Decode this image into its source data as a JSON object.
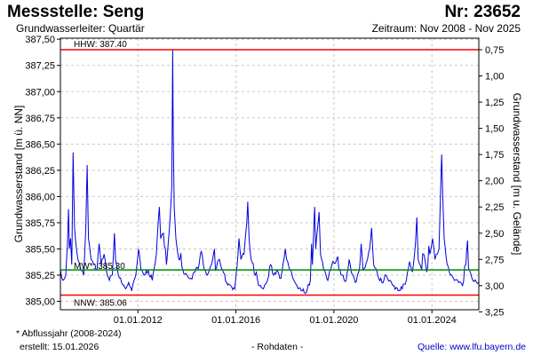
{
  "header": {
    "title": "Messstelle: Seng",
    "number": "Nr: 23652",
    "aquifer": "Grundwasserleiter: Quartär",
    "period": "Zeitraum: Nov 2008 - Nov 2025"
  },
  "footer": {
    "note": "* Abflussjahr (2008-2024)",
    "created": "erstellt:  15.01.2026",
    "raw": "- Rohdaten -",
    "source": "Quelle: www.lfu.bayern.de"
  },
  "colors": {
    "series": "#0000dd",
    "hhw": "#ff0000",
    "nnw": "#ff0000",
    "mw": "#008800",
    "grid": "#c8c8c8"
  },
  "chart_data": {
    "type": "line",
    "ylabel": "Grundwasserstand [m ü. NN]",
    "y2label": "Grundwasserstand [m u. Gelände]",
    "xlim": [
      "2008-11-01",
      "2025-11-30"
    ],
    "ylim": [
      384.92,
      387.51
    ],
    "y_ticks": [
      385.0,
      385.25,
      385.5,
      385.75,
      386.0,
      386.25,
      386.5,
      386.75,
      387.0,
      387.25,
      387.5
    ],
    "y_tick_labels": [
      "385,00",
      "385,25",
      "385,50",
      "385,75",
      "386,00",
      "386,25",
      "386,50",
      "386,75",
      "387,00",
      "387,25",
      "387,50"
    ],
    "y2_offset": 388.15,
    "y2_ticks": [
      0.75,
      1.0,
      1.25,
      1.5,
      1.75,
      2.0,
      2.25,
      2.5,
      2.75,
      3.0,
      3.25
    ],
    "y2_tick_labels": [
      "0,75",
      "1,00",
      "1,25",
      "1,50",
      "1,75",
      "2,00",
      "2,25",
      "2,50",
      "2,75",
      "3,00",
      "3,25"
    ],
    "x_ticks": [
      "2012-01-01",
      "2016-01-01",
      "2020-01-01",
      "2024-01-01"
    ],
    "x_tick_labels": [
      "01.01.2012",
      "01.01.2016",
      "01.01.2020",
      "01.01.2024"
    ],
    "grid": true,
    "reference_lines": [
      {
        "label": "HHW: 387.40",
        "value": 387.4,
        "color": "#ff0000"
      },
      {
        "label": "MW*: 385.30",
        "value": 385.3,
        "color": "#008800"
      },
      {
        "label": "NNW: 385.06",
        "value": 385.06,
        "color": "#ff0000"
      }
    ],
    "series": [
      {
        "points": [
          [
            "2008-11-01",
            385.3
          ],
          [
            "2008-12-10",
            385.2
          ],
          [
            "2009-01-20",
            385.25
          ],
          [
            "2009-02-15",
            385.55
          ],
          [
            "2009-03-01",
            385.88
          ],
          [
            "2009-03-15",
            385.5
          ],
          [
            "2009-04-01",
            385.6
          ],
          [
            "2009-04-20",
            385.35
          ],
          [
            "2009-05-10",
            386.42
          ],
          [
            "2009-05-30",
            385.7
          ],
          [
            "2009-06-20",
            385.55
          ],
          [
            "2009-07-20",
            385.4
          ],
          [
            "2009-09-01",
            385.3
          ],
          [
            "2009-10-15",
            385.25
          ],
          [
            "2009-11-15",
            385.7
          ],
          [
            "2009-12-05",
            386.3
          ],
          [
            "2009-12-25",
            385.6
          ],
          [
            "2010-02-01",
            385.4
          ],
          [
            "2010-03-15",
            385.35
          ],
          [
            "2010-05-01",
            385.3
          ],
          [
            "2010-06-01",
            385.55
          ],
          [
            "2010-07-01",
            385.35
          ],
          [
            "2010-08-15",
            385.45
          ],
          [
            "2010-09-15",
            385.3
          ],
          [
            "2010-11-01",
            385.2
          ],
          [
            "2010-12-15",
            385.25
          ],
          [
            "2011-01-15",
            385.65
          ],
          [
            "2011-02-01",
            385.4
          ],
          [
            "2011-03-15",
            385.25
          ],
          [
            "2011-05-01",
            385.18
          ],
          [
            "2011-07-01",
            385.12
          ],
          [
            "2011-08-15",
            385.18
          ],
          [
            "2011-10-01",
            385.1
          ],
          [
            "2011-12-01",
            385.25
          ],
          [
            "2012-01-10",
            385.5
          ],
          [
            "2012-02-15",
            385.3
          ],
          [
            "2012-04-01",
            385.25
          ],
          [
            "2012-06-01",
            385.3
          ],
          [
            "2012-08-01",
            385.2
          ],
          [
            "2012-10-01",
            385.45
          ],
          [
            "2012-11-15",
            385.9
          ],
          [
            "2012-12-05",
            385.6
          ],
          [
            "2013-01-15",
            385.65
          ],
          [
            "2013-03-01",
            385.35
          ],
          [
            "2013-04-15",
            385.7
          ],
          [
            "2013-05-20",
            386.1
          ],
          [
            "2013-06-02",
            387.4
          ],
          [
            "2013-06-10",
            386.6
          ],
          [
            "2013-06-25",
            385.9
          ],
          [
            "2013-07-20",
            385.6
          ],
          [
            "2013-09-01",
            385.4
          ],
          [
            "2013-11-01",
            385.3
          ],
          [
            "2014-01-01",
            385.25
          ],
          [
            "2014-03-01",
            385.22
          ],
          [
            "2014-05-01",
            385.28
          ],
          [
            "2014-07-01",
            385.35
          ],
          [
            "2014-08-01",
            385.48
          ],
          [
            "2014-09-15",
            385.3
          ],
          [
            "2014-11-01",
            385.25
          ],
          [
            "2015-01-01",
            385.35
          ],
          [
            "2015-02-15",
            385.5
          ],
          [
            "2015-03-01",
            385.3
          ],
          [
            "2015-05-01",
            385.4
          ],
          [
            "2015-06-15",
            385.3
          ],
          [
            "2015-08-15",
            385.18
          ],
          [
            "2015-10-15",
            385.15
          ],
          [
            "2015-12-15",
            385.12
          ],
          [
            "2016-01-20",
            385.35
          ],
          [
            "2016-02-15",
            385.6
          ],
          [
            "2016-03-15",
            385.4
          ],
          [
            "2016-05-01",
            385.45
          ],
          [
            "2016-06-10",
            385.75
          ],
          [
            "2016-06-25",
            385.95
          ],
          [
            "2016-07-15",
            385.6
          ],
          [
            "2016-08-15",
            385.4
          ],
          [
            "2016-10-15",
            385.25
          ],
          [
            "2016-12-15",
            385.15
          ],
          [
            "2017-02-15",
            385.12
          ],
          [
            "2017-04-15",
            385.2
          ],
          [
            "2017-06-01",
            385.35
          ],
          [
            "2017-07-15",
            385.25
          ],
          [
            "2017-09-01",
            385.3
          ],
          [
            "2017-11-01",
            385.22
          ],
          [
            "2018-01-05",
            385.5
          ],
          [
            "2018-01-25",
            385.4
          ],
          [
            "2018-03-15",
            385.3
          ],
          [
            "2018-05-15",
            385.2
          ],
          [
            "2018-07-15",
            385.12
          ],
          [
            "2018-09-15",
            385.1
          ],
          [
            "2018-11-15",
            385.08
          ],
          [
            "2019-01-15",
            385.2
          ],
          [
            "2019-02-01",
            385.55
          ],
          [
            "2019-02-15",
            385.35
          ],
          [
            "2019-03-20",
            385.9
          ],
          [
            "2019-04-05",
            385.5
          ],
          [
            "2019-05-25",
            385.85
          ],
          [
            "2019-06-15",
            385.45
          ],
          [
            "2019-08-01",
            385.3
          ],
          [
            "2019-10-01",
            385.2
          ],
          [
            "2019-12-01",
            385.35
          ],
          [
            "2020-02-10",
            385.4
          ],
          [
            "2020-03-15",
            385.3
          ],
          [
            "2020-05-01",
            385.25
          ],
          [
            "2020-07-01",
            385.2
          ],
          [
            "2020-08-15",
            385.4
          ],
          [
            "2020-09-15",
            385.28
          ],
          [
            "2020-11-15",
            385.18
          ],
          [
            "2021-01-15",
            385.3
          ],
          [
            "2021-02-10",
            385.55
          ],
          [
            "2021-03-10",
            385.3
          ],
          [
            "2021-05-15",
            385.4
          ],
          [
            "2021-06-15",
            385.5
          ],
          [
            "2021-07-15",
            385.7
          ],
          [
            "2021-08-15",
            385.35
          ],
          [
            "2021-10-15",
            385.25
          ],
          [
            "2021-12-15",
            385.18
          ],
          [
            "2022-02-15",
            385.25
          ],
          [
            "2022-04-15",
            385.2
          ],
          [
            "2022-06-15",
            385.15
          ],
          [
            "2022-08-15",
            385.1
          ],
          [
            "2022-10-15",
            385.12
          ],
          [
            "2022-12-15",
            385.2
          ],
          [
            "2023-02-01",
            385.38
          ],
          [
            "2023-03-15",
            385.28
          ],
          [
            "2023-05-01",
            385.55
          ],
          [
            "2023-05-20",
            385.8
          ],
          [
            "2023-06-10",
            385.4
          ],
          [
            "2023-08-01",
            385.3
          ],
          [
            "2023-09-01",
            385.45
          ],
          [
            "2023-10-15",
            385.28
          ],
          [
            "2023-12-01",
            385.45
          ],
          [
            "2024-01-10",
            385.6
          ],
          [
            "2024-02-15",
            385.4
          ],
          [
            "2024-04-15",
            385.5
          ],
          [
            "2024-05-25",
            386.4
          ],
          [
            "2024-06-10",
            386.0
          ],
          [
            "2024-07-01",
            385.6
          ],
          [
            "2024-08-15",
            385.35
          ],
          [
            "2024-10-01",
            385.25
          ],
          [
            "2024-12-01",
            385.2
          ],
          [
            "2025-02-01",
            385.18
          ],
          [
            "2025-04-01",
            385.15
          ],
          [
            "2025-05-20",
            385.35
          ],
          [
            "2025-06-15",
            385.58
          ],
          [
            "2025-07-01",
            385.3
          ],
          [
            "2025-09-01",
            385.2
          ],
          [
            "2025-11-30",
            385.18
          ]
        ]
      }
    ]
  }
}
